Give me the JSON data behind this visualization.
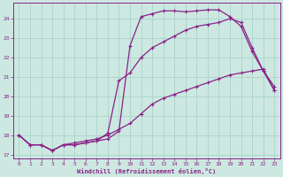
{
  "xlabel": "Windchill (Refroidissement éolien,°C)",
  "bg_color": "#cce8e0",
  "grid_color": "#aad4cc",
  "line_color": "#882288",
  "xlim": [
    -0.5,
    23.5
  ],
  "ylim": [
    16.8,
    24.8
  ],
  "xticks": [
    0,
    1,
    2,
    3,
    4,
    5,
    6,
    7,
    8,
    9,
    10,
    11,
    12,
    13,
    14,
    15,
    16,
    17,
    18,
    19,
    20,
    21,
    22,
    23
  ],
  "yticks": [
    17,
    18,
    19,
    20,
    21,
    22,
    23,
    24
  ],
  "curve1_x": [
    0,
    1,
    2,
    3,
    4,
    5,
    6,
    7,
    8,
    9,
    10,
    11,
    12,
    13,
    14,
    15,
    16,
    17,
    18,
    19,
    20,
    21,
    22,
    23
  ],
  "curve1_y": [
    18.0,
    17.5,
    17.5,
    17.2,
    17.5,
    17.5,
    17.6,
    17.7,
    17.8,
    18.2,
    22.6,
    24.1,
    24.25,
    24.4,
    24.4,
    24.35,
    24.4,
    24.45,
    24.45,
    24.1,
    23.6,
    22.3,
    21.3,
    20.3
  ],
  "curve2_x": [
    0,
    1,
    2,
    3,
    4,
    5,
    6,
    7,
    8,
    9,
    10,
    11,
    12,
    13,
    14,
    15,
    16,
    17,
    18,
    19,
    20,
    21,
    22,
    23
  ],
  "curve2_y": [
    18.0,
    17.5,
    17.5,
    17.2,
    17.5,
    17.6,
    17.7,
    17.8,
    18.0,
    18.3,
    18.6,
    19.1,
    19.6,
    19.9,
    20.1,
    20.3,
    20.5,
    20.7,
    20.9,
    21.1,
    21.2,
    21.3,
    21.4,
    20.3
  ],
  "curve3_x": [
    0,
    1,
    2,
    3,
    4,
    5,
    6,
    7,
    8,
    9,
    10,
    11,
    12,
    13,
    14,
    15,
    16,
    17,
    18,
    19,
    20,
    21,
    22,
    23
  ],
  "curve3_y": [
    18.0,
    17.5,
    17.5,
    17.2,
    17.5,
    17.5,
    17.6,
    17.7,
    18.1,
    20.8,
    21.2,
    22.0,
    22.5,
    22.8,
    23.1,
    23.4,
    23.6,
    23.7,
    23.8,
    24.0,
    23.8,
    22.5,
    21.3,
    20.5
  ]
}
